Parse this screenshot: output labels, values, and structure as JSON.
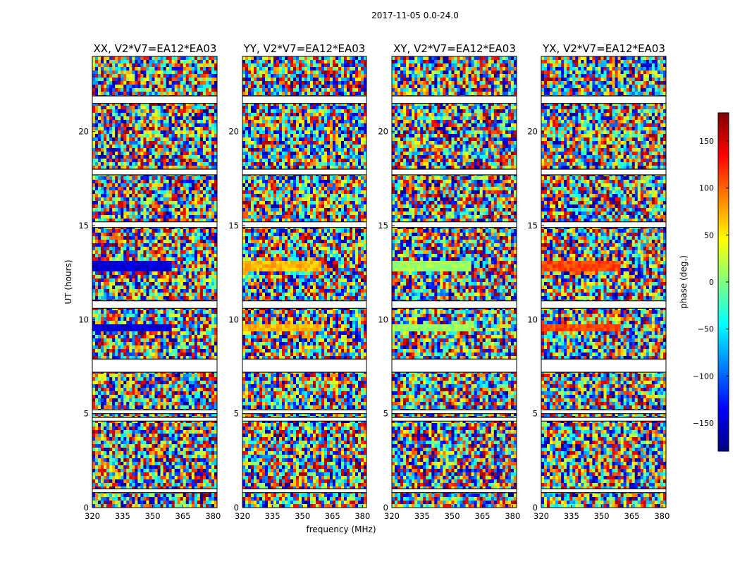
{
  "chart_data": {
    "type": "heatmap",
    "suptitle": "2017-11-05 0.0-24.0",
    "xlabel": "frequency (MHz)",
    "ylabel": "UT (hours)",
    "xlim": [
      320,
      382
    ],
    "ylim": [
      0,
      24
    ],
    "xticks": [
      "320",
      "335",
      "350",
      "365",
      "380"
    ],
    "yticks": [
      "0",
      "5",
      "10",
      "15",
      "20"
    ],
    "colorbar": {
      "label": "phase (deg.)",
      "range": [
        -180,
        180
      ],
      "ticks": [
        "150",
        "100",
        "50",
        "0",
        "−50",
        "−100",
        "−150"
      ],
      "colormap": [
        "#00007f",
        "#0000ff",
        "#0080ff",
        "#00ffff",
        "#80ff80",
        "#ffff00",
        "#ff8000",
        "#ff0000",
        "#7f0000"
      ]
    },
    "panels": [
      {
        "title": "XX, V2*V7=EA12*EA03",
        "polarization": "XX",
        "feature_phase_deg": -150
      },
      {
        "title": "YY, V2*V7=EA12*EA03",
        "polarization": "YY",
        "feature_phase_deg": 70
      },
      {
        "title": "XY, V2*V7=EA12*EA03",
        "polarization": "XY",
        "feature_phase_deg": 10
      },
      {
        "title": "YX, V2*V7=EA12*EA03",
        "polarization": "YX",
        "feature_phase_deg": 110
      }
    ],
    "coherent_bands_ut_hours": [
      [
        12.6,
        13.1
      ],
      [
        9.3,
        9.8
      ]
    ],
    "flagged_bands_ut_hours": [
      [
        21.5,
        21.9
      ],
      [
        17.7,
        18.0
      ],
      [
        14.9,
        15.2
      ],
      [
        10.6,
        11.0
      ],
      [
        7.2,
        7.9
      ],
      [
        5.0,
        5.2
      ],
      [
        4.6,
        4.8
      ],
      [
        0.8,
        1.0
      ]
    ]
  }
}
